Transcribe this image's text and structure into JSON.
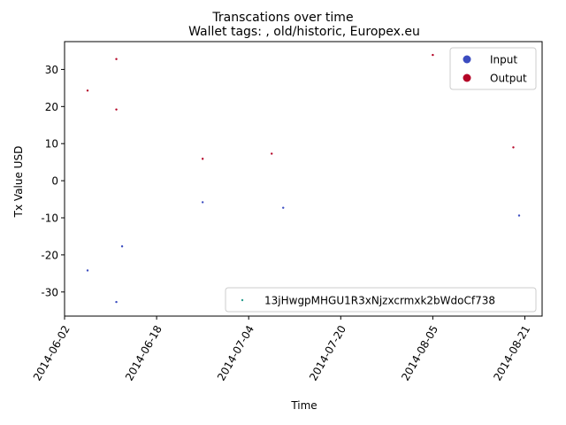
{
  "chart_data": {
    "type": "scatter",
    "title": "Transcations over time",
    "subtitle": "Wallet tags: , old/historic, Europex.eu",
    "xlabel": "Time",
    "ylabel": "Tx Value USD",
    "xlim": [
      "2014-06-02",
      "2014-08-24"
    ],
    "ylim": [
      -36.5,
      37.5
    ],
    "x_ticks": [
      "2014-06-02",
      "2014-06-18",
      "2014-07-04",
      "2014-07-20",
      "2014-08-05",
      "2014-08-21"
    ],
    "y_ticks": [
      -30,
      -20,
      -10,
      0,
      10,
      20,
      30
    ],
    "colors": {
      "input": "#3b4cc0",
      "output": "#b40426",
      "address": "#2a9d8f"
    },
    "legend_types": {
      "placement": "upper right",
      "entries": [
        "Input",
        "Output"
      ]
    },
    "legend_address": {
      "placement": "lower right",
      "entries": [
        "13jHwgpMHGU1R3xNjzxcrmxk2bWdoCf738"
      ]
    },
    "series": [
      {
        "name": "Input",
        "points": [
          {
            "x": "2014-06-06",
            "y": -24.2
          },
          {
            "x": "2014-06-11",
            "y": -32.7
          },
          {
            "x": "2014-06-12",
            "y": -17.7
          },
          {
            "x": "2014-06-26",
            "y": -5.8
          },
          {
            "x": "2014-07-10",
            "y": -7.3
          },
          {
            "x": "2014-08-20",
            "y": -9.4
          }
        ]
      },
      {
        "name": "Output",
        "points": [
          {
            "x": "2014-06-06",
            "y": 24.3
          },
          {
            "x": "2014-06-11",
            "y": 32.8
          },
          {
            "x": "2014-06-11",
            "y": 19.2
          },
          {
            "x": "2014-06-26",
            "y": 5.9
          },
          {
            "x": "2014-07-08",
            "y": 7.3
          },
          {
            "x": "2014-08-05",
            "y": 33.9
          },
          {
            "x": "2014-08-19",
            "y": 9.0
          }
        ]
      }
    ]
  }
}
